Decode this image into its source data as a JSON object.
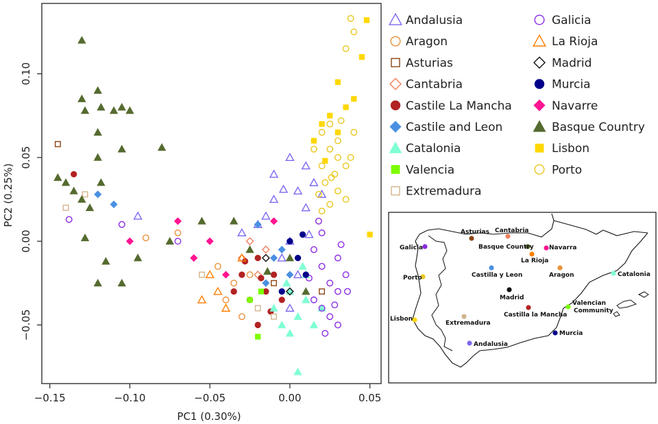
{
  "chart_data": {
    "type": "scatter",
    "title": "",
    "xlabel": "PC1 (0.30%)",
    "ylabel": "PC2 (0.25%)",
    "xlim": [
      -0.155,
      0.057
    ],
    "ylim": [
      -0.085,
      0.142
    ],
    "xticks": [
      -0.15,
      -0.1,
      -0.05,
      0.0,
      0.05
    ],
    "xtick_labels": [
      "−0.15",
      "−0.10",
      "−0.05",
      "0.00",
      "0.05"
    ],
    "yticks": [
      -0.05,
      0.0,
      0.05,
      0.1
    ],
    "ytick_labels": [
      "−0.05",
      "0.00",
      "0.05",
      "0.10"
    ],
    "series": [
      {
        "name": "Andalusia",
        "marker": "tri-open",
        "color": "#7b68ee",
        "points": [
          [
            0.0,
            0.05
          ],
          [
            -0.01,
            0.04
          ],
          [
            0.005,
            0.03
          ],
          [
            0.01,
            0.045
          ],
          [
            -0.015,
            0.015
          ],
          [
            -0.02,
            0.01
          ],
          [
            0.0,
            0.0
          ],
          [
            -0.005,
            -0.01
          ],
          [
            0.01,
            0.02
          ],
          [
            0.015,
            0.035
          ],
          [
            -0.01,
            0.025
          ],
          [
            0.005,
            -0.02
          ],
          [
            -0.03,
            0.005
          ],
          [
            0.02,
            0.028
          ],
          [
            0.0,
            -0.04
          ],
          [
            -0.095,
            0.015
          ],
          [
            0.012,
            0.004
          ],
          [
            -0.004,
            0.031
          ]
        ]
      },
      {
        "name": "Aragon",
        "marker": "circle-open",
        "color": "#e8923a",
        "points": [
          [
            -0.09,
            0.002
          ],
          [
            -0.07,
            0.005
          ],
          [
            -0.045,
            -0.015
          ],
          [
            -0.035,
            -0.025
          ],
          [
            -0.03,
            -0.045
          ],
          [
            -0.025,
            -0.02
          ],
          [
            -0.04,
            -0.035
          ]
        ]
      },
      {
        "name": "Asturias",
        "marker": "square-open",
        "color": "#8b4513",
        "points": [
          [
            -0.145,
            0.058
          ],
          [
            -0.01,
            -0.025
          ],
          [
            0.02,
            -0.03
          ]
        ]
      },
      {
        "name": "Cantabria",
        "marker": "diamond-open",
        "color": "#f08060",
        "points": [
          [
            -0.03,
            -0.01
          ],
          [
            -0.025,
            0.0
          ],
          [
            -0.02,
            -0.02
          ],
          [
            -0.015,
            -0.005
          ]
        ]
      },
      {
        "name": "Castile La Mancha",
        "marker": "circle-filled",
        "color": "#b22222",
        "points": [
          [
            -0.135,
            0.04
          ],
          [
            -0.03,
            -0.02
          ],
          [
            -0.025,
            -0.035
          ],
          [
            -0.02,
            -0.01
          ],
          [
            -0.015,
            -0.03
          ],
          [
            -0.01,
            -0.02
          ],
          [
            -0.005,
            -0.035
          ],
          [
            -0.02,
            -0.05
          ],
          [
            -0.035,
            -0.03
          ],
          [
            -0.028,
            -0.012
          ],
          [
            -0.012,
            -0.042
          ],
          [
            -0.018,
            -0.022
          ]
        ]
      },
      {
        "name": "Castile and Leon",
        "marker": "diamond-filled",
        "color": "#4a90e2",
        "points": [
          [
            -0.12,
            0.028
          ],
          [
            -0.11,
            0.022
          ],
          [
            -0.02,
            0.01
          ],
          [
            -0.01,
            -0.01
          ],
          [
            0.0,
            -0.02
          ],
          [
            -0.015,
            -0.025
          ],
          [
            -0.005,
            -0.005
          ]
        ]
      },
      {
        "name": "Catalonia",
        "marker": "tri-filled",
        "color": "#7fffd4",
        "points": [
          [
            0.0,
            -0.03
          ],
          [
            0.005,
            -0.045
          ],
          [
            -0.005,
            -0.05
          ],
          [
            0.01,
            -0.035
          ],
          [
            0.015,
            -0.05
          ],
          [
            0.0,
            -0.055
          ],
          [
            0.005,
            -0.078
          ],
          [
            -0.01,
            -0.04
          ],
          [
            0.01,
            -0.02
          ],
          [
            0.02,
            -0.04
          ],
          [
            -0.002,
            -0.025
          ],
          [
            0.008,
            -0.015
          ]
        ]
      },
      {
        "name": "Valencia",
        "marker": "square-filled",
        "color": "#7cfc00",
        "points": [
          [
            -0.02,
            -0.057
          ],
          [
            -0.025,
            -0.035
          ],
          [
            -0.018,
            -0.03
          ]
        ]
      },
      {
        "name": "Extremadura",
        "marker": "square-open",
        "color": "#d2b48c",
        "points": [
          [
            -0.14,
            0.02
          ],
          [
            -0.128,
            0.028
          ],
          [
            -0.055,
            -0.02
          ],
          [
            -0.02,
            -0.04
          ],
          [
            -0.01,
            -0.045
          ]
        ]
      },
      {
        "name": "Galicia",
        "marker": "circle-open",
        "color": "#8a2be2",
        "points": [
          [
            -0.138,
            0.013
          ],
          [
            -0.105,
            0.01
          ],
          [
            -0.07,
            0.0
          ],
          [
            0.015,
            -0.005
          ],
          [
            0.02,
            -0.015
          ],
          [
            0.025,
            -0.025
          ],
          [
            0.03,
            -0.03
          ],
          [
            0.02,
            -0.04
          ],
          [
            0.025,
            -0.045
          ],
          [
            0.03,
            -0.01
          ],
          [
            0.035,
            -0.02
          ],
          [
            0.015,
            -0.035
          ],
          [
            0.02,
            0.005
          ],
          [
            0.03,
            -0.05
          ],
          [
            0.018,
            0.012
          ],
          [
            0.028,
            -0.038
          ],
          [
            0.032,
            -0.002
          ],
          [
            0.012,
            -0.022
          ],
          [
            0.022,
            -0.055
          ],
          [
            0.036,
            -0.03
          ]
        ]
      },
      {
        "name": "La Rioja",
        "marker": "tri-open",
        "color": "#ff7f00",
        "points": [
          [
            -0.05,
            -0.02
          ],
          [
            -0.045,
            -0.03
          ],
          [
            -0.04,
            -0.04
          ],
          [
            -0.03,
            -0.01
          ],
          [
            -0.055,
            -0.035
          ]
        ]
      },
      {
        "name": "Madrid",
        "marker": "diamond-open",
        "color": "#111111",
        "points": [
          [
            -0.015,
            -0.01
          ],
          [
            0.0,
            -0.03
          ]
        ]
      },
      {
        "name": "Murcia",
        "marker": "circle-filled",
        "color": "#00008b",
        "points": [
          [
            0.0,
            0.0
          ],
          [
            0.005,
            -0.01
          ],
          [
            0.01,
            -0.02
          ],
          [
            -0.005,
            -0.03
          ],
          [
            0.008,
            0.004
          ]
        ]
      },
      {
        "name": "Navarre",
        "marker": "diamond-filled",
        "color": "#ff1493",
        "points": [
          [
            -0.1,
            0.0
          ],
          [
            -0.07,
            0.012
          ],
          [
            -0.06,
            -0.01
          ],
          [
            -0.05,
            0.0
          ],
          [
            -0.04,
            -0.02
          ],
          [
            -0.01,
            0.012
          ]
        ]
      },
      {
        "name": "Basque Country",
        "marker": "tri-filled",
        "color": "#556b2f",
        "points": [
          [
            -0.13,
            0.12
          ],
          [
            -0.13,
            0.085
          ],
          [
            -0.12,
            0.09
          ],
          [
            -0.118,
            0.08
          ],
          [
            -0.11,
            0.078
          ],
          [
            -0.105,
            0.08
          ],
          [
            -0.1,
            0.078
          ],
          [
            -0.12,
            0.065
          ],
          [
            -0.128,
            0.078
          ],
          [
            -0.12,
            0.05
          ],
          [
            -0.105,
            0.055
          ],
          [
            -0.08,
            0.056
          ],
          [
            -0.145,
            0.038
          ],
          [
            -0.135,
            0.03
          ],
          [
            -0.13,
            0.025
          ],
          [
            -0.125,
            0.02
          ],
          [
            -0.14,
            0.035
          ],
          [
            -0.118,
            0.035
          ],
          [
            -0.128,
            0.002
          ],
          [
            -0.115,
            -0.012
          ],
          [
            -0.095,
            -0.01
          ],
          [
            -0.12,
            -0.025
          ],
          [
            -0.105,
            -0.025
          ],
          [
            -0.075,
            0.0
          ],
          [
            -0.055,
            0.012
          ],
          [
            -0.035,
            0.012
          ],
          [
            -0.025,
            -0.005
          ],
          [
            0.0,
            -0.01
          ],
          [
            -0.014,
            -0.018
          ],
          [
            0.01,
            -0.03
          ]
        ]
      },
      {
        "name": "Lisbon",
        "marker": "square-filled",
        "color": "#ffd700",
        "points": [
          [
            0.048,
            0.132
          ],
          [
            0.045,
            0.11
          ],
          [
            0.03,
            0.095
          ],
          [
            0.04,
            0.085
          ],
          [
            0.035,
            0.08
          ],
          [
            0.025,
            0.075
          ],
          [
            0.05,
            0.004
          ],
          [
            0.02,
            0.07
          ],
          [
            0.015,
            0.06
          ],
          [
            0.03,
            0.065
          ],
          [
            0.022,
            0.048
          ]
        ]
      },
      {
        "name": "Porto",
        "marker": "circle-open",
        "color": "#e8c820",
        "points": [
          [
            0.038,
            0.133
          ],
          [
            0.04,
            0.125
          ],
          [
            0.035,
            0.115
          ],
          [
            0.025,
            0.07
          ],
          [
            0.02,
            0.065
          ],
          [
            0.03,
            0.06
          ],
          [
            0.025,
            0.055
          ],
          [
            0.03,
            0.05
          ],
          [
            0.02,
            0.045
          ],
          [
            0.035,
            0.045
          ],
          [
            0.028,
            0.04
          ],
          [
            0.022,
            0.035
          ],
          [
            0.03,
            0.03
          ],
          [
            0.018,
            0.028
          ],
          [
            0.025,
            0.022
          ],
          [
            0.035,
            0.025
          ],
          [
            0.015,
            0.055
          ],
          [
            0.04,
            0.065
          ],
          [
            0.032,
            0.072
          ],
          [
            0.026,
            0.038
          ],
          [
            0.038,
            0.05
          ],
          [
            0.02,
            0.018
          ]
        ]
      }
    ],
    "legend_position": "right"
  },
  "map": {
    "labels": {
      "galicia": "Galicia",
      "asturias": "Asturias",
      "cantabria": "Cantabria",
      "basque": "Basque Country",
      "navarra": "Navarra",
      "rioja": "La Rioja",
      "aragon": "Aragon",
      "castilla_leon": "Castilla y Leon",
      "catalonia": "Catalonia",
      "porto": "Porto",
      "madrid": "Madrid",
      "castilla_mancha": "Castilla la Mancha",
      "valencian": "Valencian",
      "community": "Community",
      "lisbon": "Lisbon",
      "extremadura": "Extremadura",
      "murcia": "Murcia",
      "andalusia": "Andalusia"
    },
    "colors": {
      "galicia": "#8a2be2",
      "asturias": "#8b4513",
      "cantabria": "#f08060",
      "basque": "#556b2f",
      "navarra": "#ff1493",
      "rioja": "#ff7f00",
      "aragon": "#e8923a",
      "castilla_leon": "#4a90e2",
      "catalonia": "#7fffd4",
      "porto": "#e8c820",
      "madrid": "#111111",
      "castilla_mancha": "#b22222",
      "valencian": "#7cfc00",
      "lisbon": "#ffd700",
      "extremadura": "#d2b48c",
      "murcia": "#00008b",
      "andalusia": "#7b68ee"
    }
  }
}
